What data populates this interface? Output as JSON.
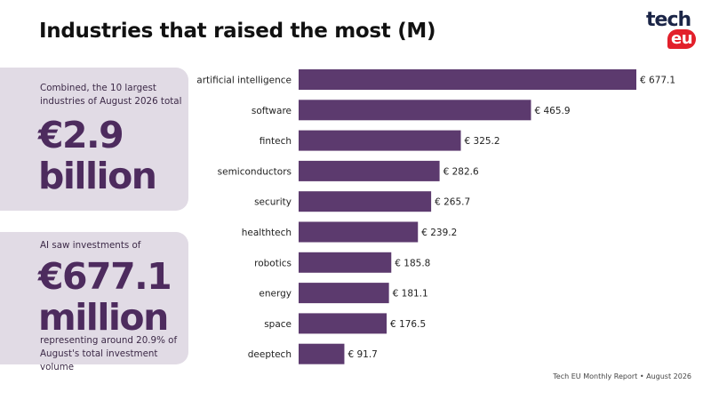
{
  "header": {
    "title": "Industries that raised the most (M)"
  },
  "logo": {
    "text_top": "tech",
    "text_bottom": "eu"
  },
  "card1": {
    "caption": "Combined, the 10 largest industries of August 2026 total",
    "big_line1": "€2.9",
    "big_line2": "billion"
  },
  "card2": {
    "caption": "AI saw investments of",
    "big_line1": "€677.1",
    "big_line2": "million",
    "note": "representing around 20.9% of August's total investment volume"
  },
  "footer": {
    "source": "Tech EU Monthly Report • August 2026"
  },
  "colors": {
    "bar": "#5c3a6e",
    "card_bg": "#e1dbe5",
    "big_text": "#4d2b5e",
    "logo_red": "#e2202b",
    "logo_navy": "#1b2547"
  },
  "chart_data": {
    "type": "bar",
    "orientation": "horizontal",
    "categories": [
      "artificial intelligence",
      "software",
      "fintech",
      "semiconductors",
      "security",
      "healthtech",
      "robotics",
      "energy",
      "space",
      "deeptech"
    ],
    "values": [
      677.1,
      465.9,
      325.2,
      282.6,
      265.7,
      239.2,
      185.8,
      181.1,
      176.5,
      91.7
    ],
    "value_labels": [
      "€ 677.1",
      "€ 465.9",
      "€ 325.2",
      "€ 282.6",
      "€ 265.7",
      "€ 239.2",
      "€ 185.8",
      "€ 181.1",
      "€ 176.5",
      "€ 91.7"
    ],
    "title": "Industries that raised the most (M)",
    "xlabel": "",
    "ylabel": "",
    "xlim": [
      0,
      677.1
    ],
    "grid": false,
    "legend": "none"
  }
}
